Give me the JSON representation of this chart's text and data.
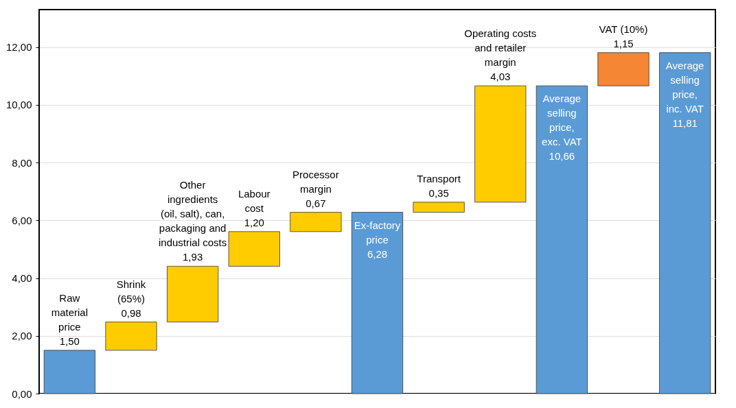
{
  "chart_data": {
    "type": "bar",
    "categories": [
      "Raw\nmaterial\nprice",
      "Shrink\n(65%)",
      "Other\ningredients\n(oil, salt), can,\npackaging and\nindustrial costs",
      "Labour\ncost",
      "Processor\nmargin",
      "Ex-factory\nprice",
      "Transport",
      "Operating costs\nand retailer\nmargin",
      "Average\nselling\nprice,\nexc. VAT",
      "VAT (10%)",
      "Average\nselling\nprice,\ninc. VAT"
    ],
    "values": [
      1.5,
      0.98,
      1.93,
      1.2,
      0.67,
      6.28,
      0.35,
      4.03,
      10.66,
      1.15,
      11.81
    ],
    "base": [
      0,
      1.5,
      2.48,
      4.41,
      5.61,
      0,
      6.28,
      6.63,
      0,
      10.66,
      0
    ],
    "colors": [
      "#5b9bd5",
      "#ffcc00",
      "#ffcc00",
      "#ffcc00",
      "#ffcc00",
      "#5b9bd5",
      "#ffcc00",
      "#ffcc00",
      "#5b9bd5",
      "#f58634",
      "#5b9bd5"
    ],
    "value_labels": [
      "1,50",
      "0,98",
      "1,93",
      "1,20",
      "0,67",
      "6,28",
      "0,35",
      "4,03",
      "10,66",
      "1,15",
      "11,81"
    ],
    "ylim": [
      0,
      13.3
    ],
    "yticks": [
      {
        "value": 0,
        "label": "0,00"
      },
      {
        "value": 2,
        "label": "2,00"
      },
      {
        "value": 4,
        "label": "4,00"
      },
      {
        "value": 6,
        "label": "6,00"
      },
      {
        "value": 8,
        "label": "8,00"
      },
      {
        "value": 10,
        "label": "10,00"
      },
      {
        "value": 12,
        "label": "12,00"
      }
    ],
    "grid": "y",
    "tick_labels": "y"
  }
}
